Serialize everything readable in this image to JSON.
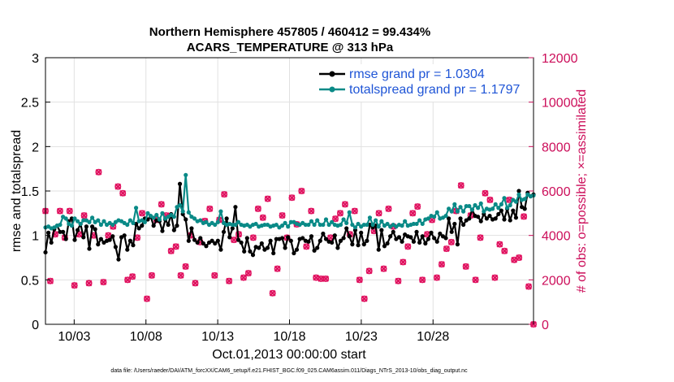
{
  "chart_data": {
    "type": "line",
    "title": "Northern Hemisphere 457805 / 460412 = 99.434%",
    "subtitle": "ACARS_TEMPERATURE @ 313 hPa",
    "xlabel": "Oct.01,2013 00:00:00 start",
    "ylabel": "rmse and totalspread",
    "y2label": "# of obs: o=possible; ×=assimilated",
    "xlim": [
      1,
      35
    ],
    "ylim": [
      0,
      3
    ],
    "y2lim": [
      0,
      12000
    ],
    "grid": true,
    "legend_position": "top-right",
    "xticks": [
      {
        "value": 3,
        "label": "10/03"
      },
      {
        "value": 8,
        "label": "10/08"
      },
      {
        "value": 13,
        "label": "10/13"
      },
      {
        "value": 18,
        "label": "10/18"
      },
      {
        "value": 23,
        "label": "10/23"
      },
      {
        "value": 28,
        "label": "10/28"
      }
    ],
    "yticks": [
      "0",
      "0.5",
      "1",
      "1.5",
      "2",
      "2.5",
      "3"
    ],
    "y2ticks": [
      "0",
      "2000",
      "4000",
      "6000",
      "8000",
      "10000",
      "12000"
    ],
    "series": [
      {
        "name": "rmse grand pr = 1.0304",
        "color": "#000000",
        "values": [
          0.81,
          1.03,
          0.92,
          1.07,
          1.11,
          1.04,
          1.04,
          0.96,
          1.16,
          1.19,
          0.95,
          1.06,
          1.13,
          0.98,
          1.1,
          0.85,
          1.1,
          1.07,
          0.9,
          0.96,
          0.92,
          0.94,
          0.95,
          0.99,
          0.87,
          0.73,
          0.98,
          1.0,
          0.84,
          0.94,
          0.89,
          1.13,
          1.08,
          1.11,
          1.19,
          1.18,
          1.21,
          1.11,
          1.17,
          1.16,
          1.05,
          1.18,
          1.12,
          1.24,
          1.06,
          1.11,
          1.58,
          1.24,
          1.18,
          0.94,
          1.08,
          0.95,
          0.92,
          0.97,
          0.91,
          0.88,
          0.92,
          0.94,
          0.91,
          0.94,
          0.84,
          1.04,
          1.19,
          0.98,
          1.08,
          1.32,
          0.95,
          0.92,
          0.82,
          0.97,
          0.82,
          0.78,
          0.87,
          0.86,
          0.91,
          0.84,
          0.86,
          0.94,
          0.8,
          0.96,
          0.96,
          0.97,
          0.86,
          0.98,
          0.94,
          0.8,
          0.84,
          0.96,
          0.97,
          0.94,
          0.93,
          0.99,
          0.83,
          0.86,
          0.94,
          1.02,
          0.96,
          0.93,
          0.92,
          1.0,
          0.86,
          0.94,
          0.97,
          1.08,
          0.99,
          0.9,
          1.06,
          0.89,
          1.03,
          0.9,
          0.94,
          1.12,
          1.09,
          1.11,
          0.84,
          1.06,
          0.88,
          0.91,
          0.99,
          1.04,
          0.96,
          0.98,
          0.93,
          1.01,
          0.99,
          0.98,
          0.93,
          1.04,
          0.92,
          0.99,
          0.91,
          0.96,
          1.03,
          0.97,
          0.93,
          1.02,
          0.99,
          0.97,
          1.19,
          1.04,
          1.13,
          0.9,
          1.19,
          1.12,
          1.17,
          1.19,
          1.29,
          1.22,
          1.21,
          1.16,
          1.24,
          1.19,
          1.22,
          1.18,
          1.19,
          1.24,
          1.28,
          1.18,
          1.3,
          1.17,
          1.28,
          1.2,
          1.5,
          1.32,
          1.3,
          1.48,
          1.44,
          1.46
        ]
      },
      {
        "name": "totalspread grand pr = 1.1797",
        "color": "#0a8a87",
        "values": [
          1.09,
          1.1,
          1.08,
          1.09,
          1.11,
          1.12,
          1.21,
          1.19,
          1.13,
          1.11,
          1.19,
          1.16,
          1.13,
          1.17,
          1.17,
          1.15,
          1.2,
          1.15,
          1.17,
          1.12,
          1.16,
          1.12,
          1.14,
          1.12,
          1.15,
          1.17,
          1.16,
          1.14,
          1.12,
          1.17,
          1.14,
          1.31,
          1.16,
          1.17,
          1.15,
          1.25,
          1.22,
          1.2,
          1.23,
          1.18,
          1.25,
          1.19,
          1.21,
          1.23,
          1.21,
          1.32,
          1.34,
          1.27,
          1.68,
          1.26,
          1.21,
          1.19,
          1.16,
          1.17,
          1.14,
          1.15,
          1.12,
          1.14,
          1.12,
          1.15,
          1.27,
          1.14,
          1.12,
          1.13,
          1.12,
          1.12,
          1.15,
          1.12,
          1.11,
          1.12,
          1.1,
          1.12,
          1.13,
          1.1,
          1.11,
          1.12,
          1.12,
          1.1,
          1.11,
          1.12,
          1.09,
          1.11,
          1.14,
          1.1,
          1.15,
          1.15,
          1.13,
          1.12,
          1.14,
          1.12,
          1.12,
          1.16,
          1.12,
          1.17,
          1.12,
          1.12,
          1.18,
          1.12,
          1.15,
          1.12,
          1.11,
          1.12,
          1.18,
          1.14,
          1.26,
          1.12,
          1.09,
          1.13,
          1.1,
          1.12,
          1.12,
          1.2,
          1.12,
          1.17,
          1.1,
          1.16,
          1.11,
          1.13,
          1.1,
          1.12,
          1.1,
          1.12,
          1.11,
          1.16,
          1.11,
          1.12,
          1.13,
          1.13,
          1.17,
          1.13,
          1.18,
          1.19,
          1.22,
          1.21,
          1.26,
          1.19,
          1.2,
          1.22,
          1.3,
          1.27,
          1.35,
          1.27,
          1.32,
          1.27,
          1.33,
          1.33,
          1.29,
          1.34,
          1.31,
          1.36,
          1.27,
          1.3,
          1.29,
          1.3,
          1.35,
          1.31,
          1.35,
          1.42,
          1.31,
          1.34,
          1.4,
          1.38,
          1.46,
          1.4,
          1.41,
          1.46,
          1.44,
          1.45
        ]
      }
    ],
    "observations": [
      {
        "name": "possible",
        "marker": "o",
        "color": "#e0115f",
        "values": [
          5100,
          1950,
          4050,
          5100,
          3900,
          5100,
          1750,
          4050,
          4900,
          1850,
          4000,
          6850,
          1900,
          4000,
          4400,
          6200,
          5900,
          2000,
          2150,
          3900,
          5000,
          1150,
          2200,
          4700,
          5400,
          4900,
          3300,
          3500,
          2200,
          2600,
          4000,
          1850,
          3700,
          4650,
          5200,
          2200,
          4700,
          5850,
          1950,
          3800,
          4050,
          2100,
          2300,
          3900,
          5200,
          4800,
          5650,
          1400,
          2500,
          4900,
          3900,
          5700,
          4500,
          6000,
          3500,
          5100,
          2100,
          2050,
          2050,
          3900,
          4750,
          5000,
          5400,
          4050,
          5100,
          2000,
          1150,
          2400,
          4200,
          5000,
          2500,
          5200,
          4400,
          1950,
          2800,
          3500,
          5000,
          5300,
          2000,
          4050,
          4700,
          2100,
          2700,
          3400,
          3700,
          5100,
          6250,
          2600,
          4900,
          2000,
          3900,
          5900,
          5600,
          2100,
          3600,
          3300,
          5600,
          2900,
          3000,
          4850,
          1700,
          0
        ]
      },
      {
        "name": "assimilated",
        "marker": "x",
        "color": "#e0115f",
        "values": [
          5100,
          1950,
          4050,
          5100,
          3900,
          5100,
          1750,
          4050,
          4900,
          1850,
          4000,
          6850,
          1900,
          4000,
          4400,
          6200,
          5900,
          2000,
          2150,
          3900,
          5000,
          1150,
          2200,
          4700,
          5400,
          4900,
          3300,
          3500,
          2200,
          2600,
          4000,
          1850,
          3700,
          4650,
          5200,
          2200,
          4700,
          5850,
          1950,
          3800,
          4050,
          2100,
          2300,
          3900,
          5200,
          4800,
          5650,
          1400,
          2500,
          4900,
          3900,
          5700,
          4500,
          6000,
          3500,
          5100,
          2100,
          2050,
          2050,
          3900,
          4750,
          5000,
          5400,
          4050,
          5100,
          2000,
          1150,
          2400,
          4200,
          5000,
          2500,
          5200,
          4400,
          1950,
          2800,
          3500,
          5000,
          5300,
          2000,
          4050,
          4700,
          2100,
          2700,
          3400,
          3700,
          5100,
          6250,
          2600,
          4900,
          2000,
          3900,
          5900,
          5600,
          2100,
          3600,
          3300,
          5600,
          2900,
          3000,
          4850,
          1700,
          0
        ]
      }
    ]
  },
  "footnote": "data file: /Users/raeder/DAI/ATM_forcXX/CAM6_setup/f.e21.FHIST_BGC.f09_025.CAM6assim.011/Diags_NTrS_2013-10/obs_diag_output.nc"
}
